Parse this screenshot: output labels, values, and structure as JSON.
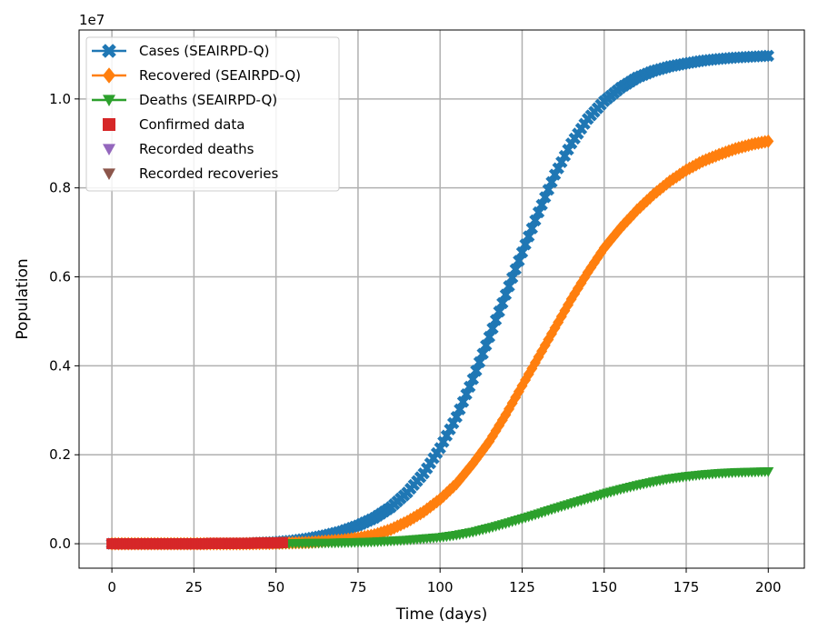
{
  "chart_data": {
    "type": "line",
    "xlabel": "Time (days)",
    "ylabel": "Population",
    "offset_label": "1e7",
    "xlim": [
      -10,
      211
    ],
    "ylim": [
      -0.055,
      1.155
    ],
    "y_scale_factor": 10000000,
    "xticks": [
      0,
      25,
      50,
      75,
      100,
      125,
      150,
      175,
      200
    ],
    "xtick_labels": [
      "0",
      "25",
      "50",
      "75",
      "100",
      "125",
      "150",
      "175",
      "200"
    ],
    "yticks": [
      0.0,
      0.2,
      0.4,
      0.6,
      0.8,
      1.0
    ],
    "ytick_labels": [
      "0.0",
      "0.2",
      "0.4",
      "0.6",
      "0.8",
      "1.0"
    ],
    "grid": true,
    "legend_position": "top-left",
    "series": [
      {
        "name": "Cases (SEAIRPD-Q)",
        "color": "#1f77b4",
        "marker": "x-filled",
        "line": true,
        "x": [
          0,
          10,
          20,
          30,
          40,
          50,
          55,
          60,
          65,
          70,
          75,
          80,
          85,
          90,
          95,
          100,
          105,
          110,
          115,
          120,
          125,
          130,
          135,
          140,
          145,
          150,
          155,
          160,
          165,
          170,
          175,
          180,
          185,
          190,
          195,
          200
        ],
        "values": [
          0.0,
          0.0,
          0.0,
          0.0,
          0.001,
          0.004,
          0.007,
          0.012,
          0.019,
          0.028,
          0.041,
          0.058,
          0.082,
          0.115,
          0.158,
          0.215,
          0.285,
          0.37,
          0.465,
          0.56,
          0.655,
          0.745,
          0.83,
          0.9,
          0.955,
          0.995,
          1.025,
          1.048,
          1.063,
          1.073,
          1.08,
          1.086,
          1.09,
          1.093,
          1.095,
          1.097
        ]
      },
      {
        "name": "Recovered (SEAIRPD-Q)",
        "color": "#ff7f0e",
        "marker": "diamond",
        "line": true,
        "x": [
          0,
          10,
          20,
          30,
          40,
          50,
          60,
          70,
          75,
          80,
          85,
          90,
          95,
          100,
          105,
          110,
          115,
          120,
          125,
          130,
          135,
          140,
          145,
          150,
          155,
          160,
          165,
          170,
          175,
          180,
          185,
          190,
          195,
          200
        ],
        "values": [
          0.0,
          0.0,
          0.0,
          0.0,
          0.0,
          0.001,
          0.003,
          0.008,
          0.013,
          0.02,
          0.032,
          0.05,
          0.072,
          0.1,
          0.135,
          0.18,
          0.23,
          0.29,
          0.355,
          0.42,
          0.485,
          0.55,
          0.61,
          0.665,
          0.71,
          0.75,
          0.785,
          0.815,
          0.84,
          0.86,
          0.875,
          0.888,
          0.898,
          0.905
        ]
      },
      {
        "name": "Deaths (SEAIRPD-Q)",
        "color": "#2ca02c",
        "marker": "triangle-down",
        "line": true,
        "x": [
          50,
          60,
          70,
          80,
          90,
          100,
          105,
          110,
          115,
          120,
          125,
          130,
          135,
          140,
          145,
          150,
          155,
          160,
          165,
          170,
          175,
          180,
          185,
          190,
          195,
          200
        ],
        "values": [
          0.0,
          0.001,
          0.002,
          0.004,
          0.008,
          0.014,
          0.019,
          0.026,
          0.035,
          0.045,
          0.056,
          0.067,
          0.079,
          0.09,
          0.101,
          0.112,
          0.122,
          0.131,
          0.139,
          0.146,
          0.151,
          0.155,
          0.158,
          0.16,
          0.161,
          0.162
        ]
      },
      {
        "name": "Confirmed data",
        "color": "#d62728",
        "marker": "square",
        "line": false,
        "x": [
          0,
          2,
          4,
          6,
          8,
          10,
          12,
          14,
          16,
          18,
          20,
          22,
          24,
          26,
          28,
          30,
          32,
          34,
          36,
          38,
          40,
          42,
          44,
          46,
          48,
          50,
          52
        ],
        "values": [
          0.0,
          0.0,
          0.0,
          0.0,
          0.0,
          0.0,
          0.0,
          0.0,
          0.0,
          0.0,
          0.0,
          0.0,
          0.0,
          0.0,
          0.0,
          0.0005,
          0.0005,
          0.0005,
          0.0005,
          0.001,
          0.001,
          0.001,
          0.0015,
          0.0015,
          0.002,
          0.002,
          0.0025
        ]
      },
      {
        "name": "Recorded deaths",
        "color": "#9467bd",
        "marker": "triangle-down",
        "line": false,
        "x": [
          0,
          4,
          8,
          12,
          16,
          20,
          24,
          28,
          32,
          36,
          40,
          44,
          48,
          52
        ],
        "values": [
          0.0,
          0.0,
          0.0,
          0.0,
          0.0,
          0.0,
          0.0,
          0.0,
          0.0,
          0.0,
          0.0,
          0.0,
          0.0,
          0.0
        ]
      },
      {
        "name": "Recorded recoveries",
        "color": "#8c564b",
        "marker": "triangle-down",
        "line": false,
        "x": [
          0,
          2,
          4,
          6,
          8,
          10,
          12,
          14,
          16,
          18,
          20,
          22,
          24,
          26,
          28,
          30,
          32,
          34,
          36,
          38,
          40,
          42,
          44,
          46,
          48,
          50,
          52
        ],
        "values": [
          0.0,
          0.0,
          0.0,
          0.0,
          0.0,
          0.0,
          0.0,
          0.0,
          0.0,
          0.0,
          0.0,
          0.0,
          0.0,
          0.0,
          0.0,
          0.0,
          0.0,
          0.0,
          0.0,
          0.0005,
          0.0005,
          0.0005,
          0.0005,
          0.001,
          0.001,
          0.001,
          0.001
        ]
      }
    ]
  }
}
